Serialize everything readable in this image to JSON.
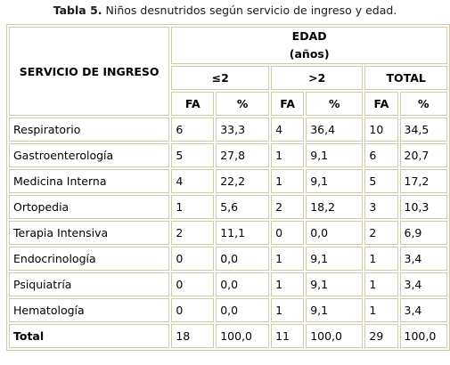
{
  "caption": {
    "label": "Tabla  5.",
    "text": "Niños desnutridos según servicio de ingreso y edad."
  },
  "table": {
    "service_header": "SERVICIO DE  INGRESO",
    "age_header": "EDAD",
    "age_unit": "(años)",
    "groups": [
      "≤2",
      ">2",
      "TOTAL"
    ],
    "sub_headers": [
      "FA",
      "%",
      "FA",
      "%",
      "FA",
      "%"
    ],
    "rows": [
      {
        "label": "Respiratorio",
        "cells": [
          "6",
          "33,3",
          "4",
          "36,4",
          "10",
          "34,5"
        ]
      },
      {
        "label": "Gastroenterología",
        "cells": [
          "5",
          "27,8",
          "1",
          "9,1",
          "6",
          "20,7"
        ]
      },
      {
        "label": "Medicina Interna",
        "cells": [
          "4",
          "22,2",
          "1",
          "9,1",
          "5",
          "17,2"
        ]
      },
      {
        "label": "Ortopedia",
        "cells": [
          "1",
          "5,6",
          "2",
          "18,2",
          "3",
          "10,3"
        ]
      },
      {
        "label": "Terapia Intensiva",
        "cells": [
          "2",
          "11,1",
          "0",
          "0,0",
          "2",
          "6,9"
        ]
      },
      {
        "label": "Endocrinología",
        "cells": [
          "0",
          "0,0",
          "1",
          "9,1",
          "1",
          "3,4"
        ]
      },
      {
        "label": "Psiquiatría",
        "cells": [
          "0",
          "0,0",
          "1",
          "9,1",
          "1",
          "3,4"
        ]
      },
      {
        "label": "Hematología",
        "cells": [
          "0",
          "0,0",
          "1",
          "9,1",
          "1",
          "3,4"
        ]
      }
    ],
    "total": {
      "label": "Total",
      "cells": [
        "18",
        "100,0",
        "11",
        "100,0",
        "29",
        "100,0"
      ]
    }
  },
  "colors": {
    "border": "#cfcaa7",
    "text": "#000000"
  }
}
